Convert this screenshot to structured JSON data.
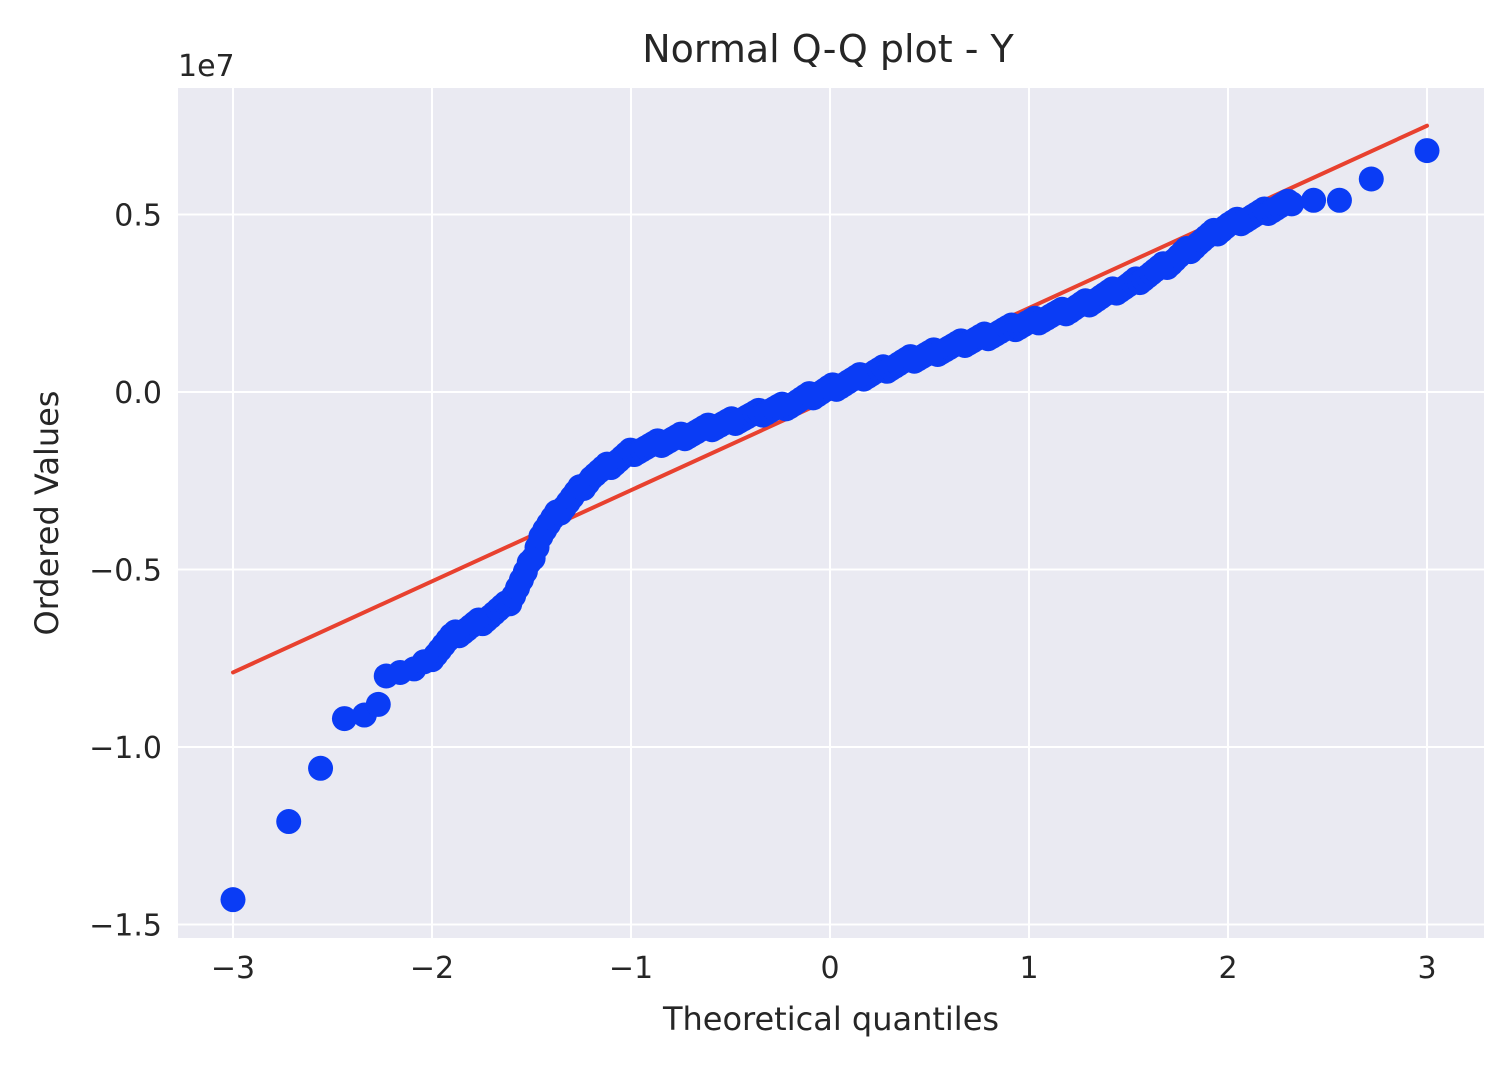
{
  "chart_data": {
    "type": "scatter",
    "title": "Normal Q-Q plot - Y",
    "xlabel": "Theoretical quantiles",
    "ylabel": "Ordered Values",
    "y_offset_text": "1e7",
    "xlim": [
      -3.3,
      3.3
    ],
    "ylim": [
      -1.56,
      0.86
    ],
    "x_ticks": [
      -3,
      -2,
      -1,
      0,
      1,
      2,
      3
    ],
    "x_tick_labels": [
      "−3",
      "−2",
      "−1",
      "0",
      "1",
      "2",
      "3"
    ],
    "y_ticks": [
      -1.5,
      -1.0,
      -0.5,
      0.0,
      0.5
    ],
    "y_tick_labels": [
      "−1.5",
      "−1.0",
      "−0.5",
      "0.0",
      "0.5"
    ],
    "grid": true,
    "background_color": "#eaeaf2",
    "series": [
      {
        "kind": "points",
        "color": "#0a3cf5",
        "quantile_curve": {
          "x": [
            -2.0,
            -1.9,
            -1.75,
            -1.62,
            -1.52,
            -1.45,
            -1.35,
            -1.2,
            -1.0,
            -0.6,
            -0.2,
            0.0,
            0.4,
            0.8,
            1.2,
            1.5,
            1.7,
            1.85,
            2.0,
            2.2,
            2.3
          ],
          "y": [
            -0.745,
            -0.69,
            -0.645,
            -0.6,
            -0.5,
            -0.4,
            -0.33,
            -0.24,
            -0.17,
            -0.1,
            -0.035,
            0.01,
            0.09,
            0.16,
            0.23,
            0.3,
            0.36,
            0.42,
            0.47,
            0.51,
            0.53
          ]
        },
        "points": [
          {
            "x": -3.0,
            "y": -1.43
          },
          {
            "x": -2.72,
            "y": -1.21
          },
          {
            "x": -2.56,
            "y": -1.06
          },
          {
            "x": -2.44,
            "y": -0.92
          },
          {
            "x": -2.34,
            "y": -0.91
          },
          {
            "x": -2.27,
            "y": -0.88
          },
          {
            "x": -2.23,
            "y": -0.8
          },
          {
            "x": -2.16,
            "y": -0.79
          },
          {
            "x": -2.09,
            "y": -0.78
          },
          {
            "x": -2.04,
            "y": -0.76
          },
          {
            "x": 2.32,
            "y": 0.53
          },
          {
            "x": 2.43,
            "y": 0.54
          },
          {
            "x": 2.56,
            "y": 0.54
          },
          {
            "x": 2.72,
            "y": 0.6
          },
          {
            "x": 3.0,
            "y": 0.68
          }
        ]
      },
      {
        "kind": "line",
        "color": "#e8412f",
        "x": [
          -3.0,
          3.0
        ],
        "y": [
          -0.79,
          0.75
        ]
      }
    ]
  }
}
